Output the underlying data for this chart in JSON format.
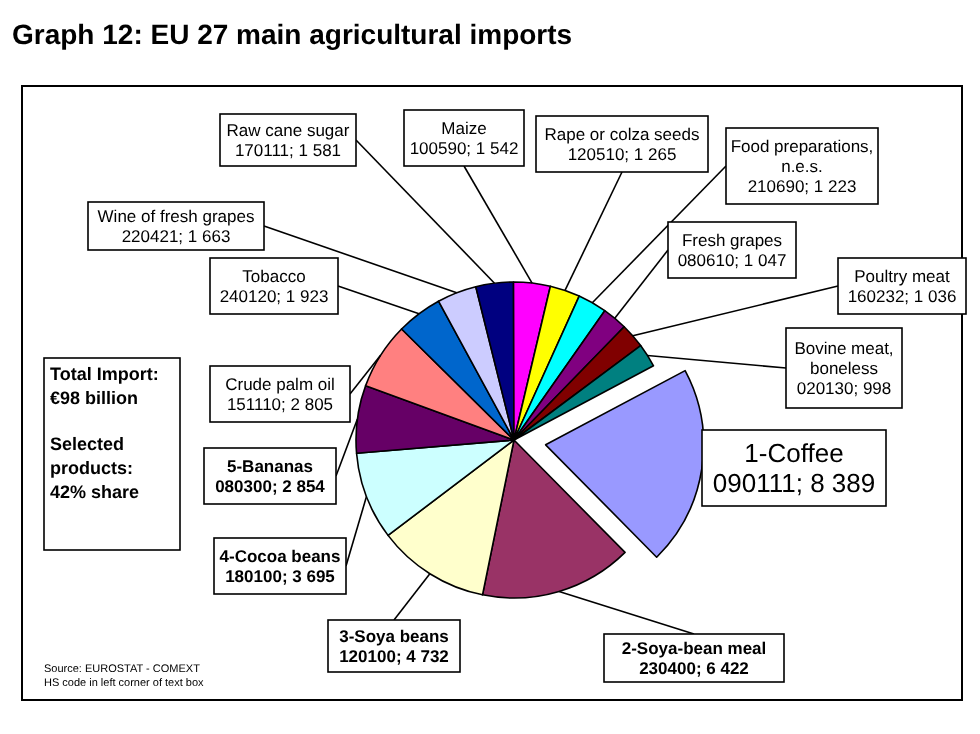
{
  "chart_data": {
    "type": "pie",
    "title": "Graph 12: EU 27 main agricultural imports",
    "categories": [
      "1-Coffee",
      "2-Soya-bean meal",
      "3-Soya beans",
      "4-Cocoa beans",
      "5-Bananas",
      "Crude palm oil",
      "Tobacco",
      "Wine of fresh grapes",
      "Raw cane sugar",
      "Maize",
      "Rape or colza seeds",
      "Food preparations, n.e.s.",
      "Fresh grapes",
      "Poultry meat",
      "Bovine meat, boneless"
    ],
    "values": [
      8389,
      6422,
      4732,
      3695,
      2854,
      2805,
      1923,
      1663,
      1581,
      1542,
      1265,
      1223,
      1047,
      1036,
      998
    ],
    "value_labels": [
      "090111;  8 389",
      "230400;  6 422",
      "120100;  4 732",
      "180100;  3 695",
      "080300;  2 854",
      "151110;  2 805",
      "240120;  1 923",
      "220421;  1 663",
      "170111;  1 581",
      "100590;  1 542",
      "120510;  1 265",
      "210690;  1 223",
      "080610;  1 047",
      "160232;  1 036",
      "020130;   998"
    ],
    "colors": [
      "#9999ff",
      "#993366",
      "#ffffcc",
      "#ccffff",
      "#660066",
      "#ff8080",
      "#0066cc",
      "#ccccff",
      "#000080",
      "#ff00ff",
      "#ffff00",
      "#00ffff",
      "#800080",
      "#800000",
      "#008080"
    ],
    "annotations": [
      "Total Import: €98 billion",
      "Selected products: 42% share",
      "Source: EUROSTAT - COMEXT",
      "HS code in left corner of text box"
    ]
  }
}
